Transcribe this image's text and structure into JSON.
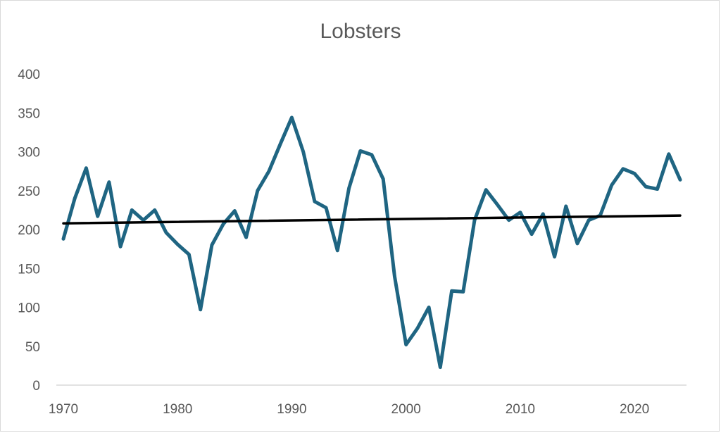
{
  "chart_data": {
    "type": "line",
    "title": "Lobsters",
    "xlabel": "",
    "ylabel": "",
    "xlim": [
      1970,
      2024
    ],
    "ylim": [
      0,
      400
    ],
    "x_ticks": [
      1970,
      1980,
      1990,
      2000,
      2010,
      2020
    ],
    "y_ticks": [
      0,
      50,
      100,
      150,
      200,
      250,
      300,
      350,
      400
    ],
    "grid": false,
    "legend": "none",
    "series": [
      {
        "color": "#1f6582",
        "x": [
          1970,
          1971,
          1972,
          1973,
          1974,
          1975,
          1976,
          1977,
          1978,
          1979,
          1980,
          1981,
          1982,
          1983,
          1984,
          1985,
          1986,
          1987,
          1988,
          1989,
          1990,
          1991,
          1992,
          1993,
          1994,
          1995,
          1996,
          1997,
          1998,
          1999,
          2000,
          2001,
          2002,
          2003,
          2004,
          2005,
          2006,
          2007,
          2008,
          2009,
          2010,
          2011,
          2012,
          2013,
          2014,
          2015,
          2016,
          2017,
          2018,
          2019,
          2020,
          2021,
          2022,
          2023,
          2024
        ],
        "values": [
          188,
          240,
          279,
          217,
          261,
          178,
          225,
          212,
          225,
          196,
          181,
          168,
          97,
          180,
          207,
          224,
          190,
          250,
          275,
          310,
          344,
          300,
          236,
          228,
          173,
          253,
          301,
          296,
          265,
          140,
          52,
          73,
          100,
          23,
          121,
          120,
          212,
          251,
          232,
          212,
          222,
          194,
          220,
          165,
          230,
          182,
          212,
          218,
          257,
          278,
          272,
          255,
          252,
          297,
          264
        ]
      },
      {
        "color": "#000000",
        "x": [
          1970,
          2024
        ],
        "values": [
          208,
          218
        ]
      }
    ]
  }
}
